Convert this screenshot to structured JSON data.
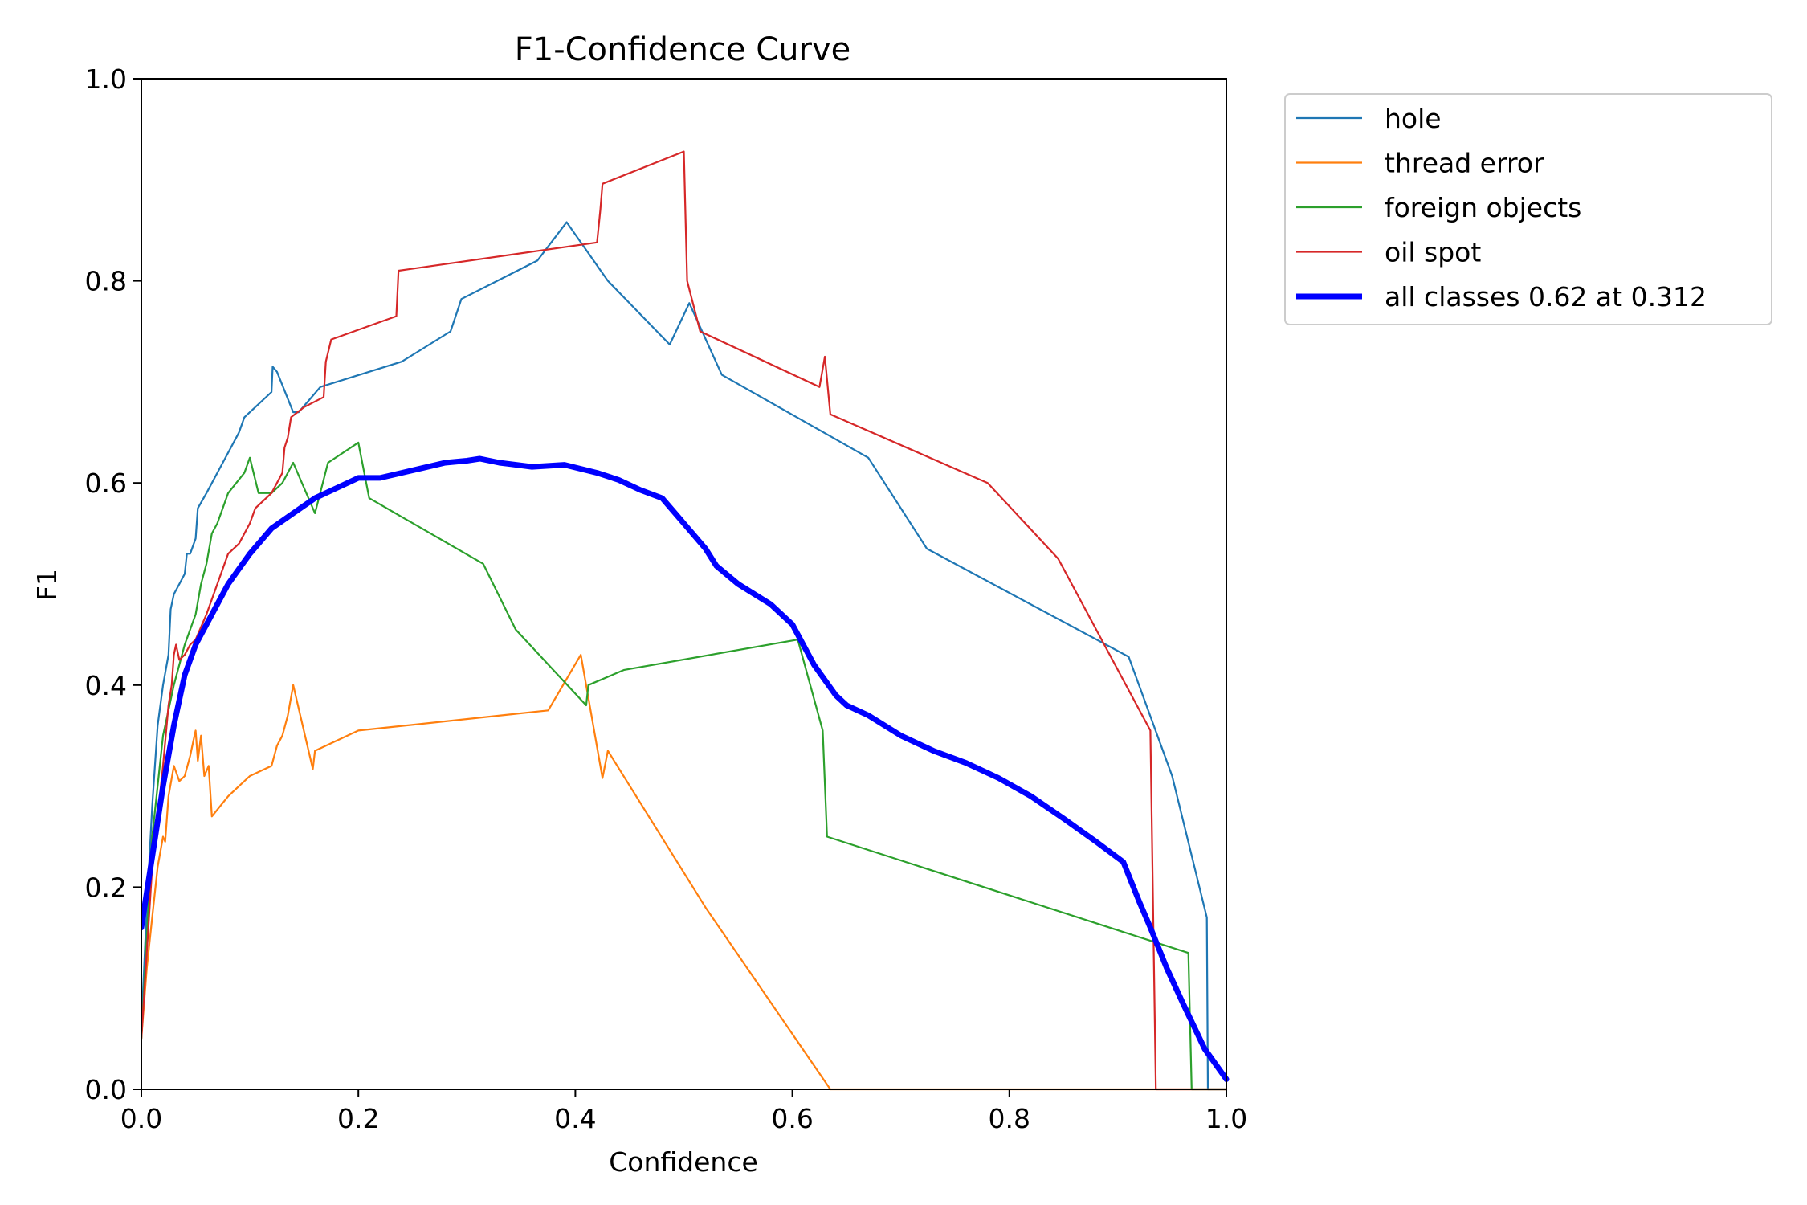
{
  "chart_data": {
    "type": "line",
    "title": "F1-Confidence Curve",
    "xlabel": "Confidence",
    "ylabel": "F1",
    "xlim": [
      0.0,
      1.0
    ],
    "ylim": [
      0.0,
      1.0
    ],
    "grid": false,
    "legend_position": "outside top-right",
    "xticks": [
      0.0,
      0.2,
      0.4,
      0.6,
      0.8,
      1.0
    ],
    "xtick_labels": [
      "0.0",
      "0.2",
      "0.4",
      "0.6",
      "0.8",
      "1.0"
    ],
    "yticks": [
      0.0,
      0.2,
      0.4,
      0.6,
      0.8,
      1.0
    ],
    "ytick_labels": [
      "0.0",
      "0.2",
      "0.4",
      "0.6",
      "0.8",
      "1.0"
    ],
    "series": [
      {
        "name": "hole",
        "color": "#1f77b4",
        "weight": "thin",
        "points": [
          [
            0.0,
            0.06
          ],
          [
            0.005,
            0.18
          ],
          [
            0.01,
            0.28
          ],
          [
            0.015,
            0.36
          ],
          [
            0.02,
            0.4
          ],
          [
            0.025,
            0.43
          ],
          [
            0.027,
            0.475
          ],
          [
            0.03,
            0.49
          ],
          [
            0.035,
            0.5
          ],
          [
            0.04,
            0.51
          ],
          [
            0.042,
            0.53
          ],
          [
            0.045,
            0.53
          ],
          [
            0.05,
            0.545
          ],
          [
            0.052,
            0.575
          ],
          [
            0.06,
            0.59
          ],
          [
            0.07,
            0.61
          ],
          [
            0.08,
            0.63
          ],
          [
            0.09,
            0.65
          ],
          [
            0.095,
            0.665
          ],
          [
            0.1,
            0.67
          ],
          [
            0.12,
            0.69
          ],
          [
            0.121,
            0.715
          ],
          [
            0.125,
            0.71
          ],
          [
            0.14,
            0.67
          ],
          [
            0.145,
            0.67
          ],
          [
            0.165,
            0.695
          ],
          [
            0.24,
            0.72
          ],
          [
            0.285,
            0.75
          ],
          [
            0.295,
            0.782
          ],
          [
            0.365,
            0.82
          ],
          [
            0.392,
            0.858
          ],
          [
            0.43,
            0.8
          ],
          [
            0.487,
            0.737
          ],
          [
            0.505,
            0.778
          ],
          [
            0.535,
            0.707
          ],
          [
            0.67,
            0.625
          ],
          [
            0.724,
            0.535
          ],
          [
            0.91,
            0.428
          ],
          [
            0.95,
            0.31
          ],
          [
            0.982,
            0.17
          ],
          [
            0.983,
            0.0
          ],
          [
            1.0,
            0.0
          ]
        ]
      },
      {
        "name": "thread error",
        "color": "#ff7f0e",
        "weight": "thin",
        "points": [
          [
            0.0,
            0.05
          ],
          [
            0.005,
            0.12
          ],
          [
            0.01,
            0.17
          ],
          [
            0.015,
            0.22
          ],
          [
            0.02,
            0.25
          ],
          [
            0.022,
            0.245
          ],
          [
            0.025,
            0.29
          ],
          [
            0.03,
            0.32
          ],
          [
            0.035,
            0.305
          ],
          [
            0.04,
            0.31
          ],
          [
            0.045,
            0.33
          ],
          [
            0.048,
            0.345
          ],
          [
            0.05,
            0.355
          ],
          [
            0.052,
            0.325
          ],
          [
            0.055,
            0.35
          ],
          [
            0.058,
            0.31
          ],
          [
            0.062,
            0.32
          ],
          [
            0.065,
            0.27
          ],
          [
            0.08,
            0.29
          ],
          [
            0.09,
            0.3
          ],
          [
            0.1,
            0.31
          ],
          [
            0.12,
            0.32
          ],
          [
            0.125,
            0.34
          ],
          [
            0.13,
            0.35
          ],
          [
            0.135,
            0.37
          ],
          [
            0.14,
            0.4
          ],
          [
            0.158,
            0.317
          ],
          [
            0.16,
            0.335
          ],
          [
            0.2,
            0.355
          ],
          [
            0.375,
            0.375
          ],
          [
            0.405,
            0.43
          ],
          [
            0.425,
            0.308
          ],
          [
            0.43,
            0.335
          ],
          [
            0.52,
            0.18
          ],
          [
            0.635,
            0.0
          ],
          [
            1.0,
            0.0
          ]
        ]
      },
      {
        "name": "foreign objects",
        "color": "#2ca02c",
        "weight": "thin",
        "points": [
          [
            0.0,
            0.05
          ],
          [
            0.005,
            0.15
          ],
          [
            0.01,
            0.25
          ],
          [
            0.02,
            0.35
          ],
          [
            0.03,
            0.4
          ],
          [
            0.04,
            0.44
          ],
          [
            0.05,
            0.47
          ],
          [
            0.055,
            0.5
          ],
          [
            0.06,
            0.52
          ],
          [
            0.065,
            0.55
          ],
          [
            0.07,
            0.56
          ],
          [
            0.08,
            0.59
          ],
          [
            0.095,
            0.61
          ],
          [
            0.1,
            0.625
          ],
          [
            0.108,
            0.59
          ],
          [
            0.12,
            0.59
          ],
          [
            0.13,
            0.6
          ],
          [
            0.14,
            0.62
          ],
          [
            0.16,
            0.57
          ],
          [
            0.172,
            0.62
          ],
          [
            0.2,
            0.64
          ],
          [
            0.21,
            0.585
          ],
          [
            0.315,
            0.52
          ],
          [
            0.345,
            0.455
          ],
          [
            0.41,
            0.38
          ],
          [
            0.412,
            0.4
          ],
          [
            0.445,
            0.415
          ],
          [
            0.605,
            0.445
          ],
          [
            0.628,
            0.355
          ],
          [
            0.632,
            0.25
          ],
          [
            0.965,
            0.135
          ],
          [
            0.968,
            0.0
          ],
          [
            1.0,
            0.0
          ]
        ]
      },
      {
        "name": "oil spot",
        "color": "#d62728",
        "weight": "thin",
        "points": [
          [
            0.0,
            0.05
          ],
          [
            0.01,
            0.22
          ],
          [
            0.02,
            0.32
          ],
          [
            0.025,
            0.38
          ],
          [
            0.028,
            0.4
          ],
          [
            0.03,
            0.43
          ],
          [
            0.032,
            0.44
          ],
          [
            0.035,
            0.425
          ],
          [
            0.04,
            0.43
          ],
          [
            0.045,
            0.44
          ],
          [
            0.05,
            0.445
          ],
          [
            0.06,
            0.47
          ],
          [
            0.07,
            0.5
          ],
          [
            0.08,
            0.53
          ],
          [
            0.09,
            0.54
          ],
          [
            0.1,
            0.56
          ],
          [
            0.105,
            0.575
          ],
          [
            0.11,
            0.58
          ],
          [
            0.12,
            0.59
          ],
          [
            0.13,
            0.61
          ],
          [
            0.132,
            0.635
          ],
          [
            0.135,
            0.645
          ],
          [
            0.138,
            0.665
          ],
          [
            0.15,
            0.675
          ],
          [
            0.168,
            0.685
          ],
          [
            0.17,
            0.72
          ],
          [
            0.175,
            0.742
          ],
          [
            0.235,
            0.765
          ],
          [
            0.237,
            0.81
          ],
          [
            0.42,
            0.838
          ],
          [
            0.423,
            0.87
          ],
          [
            0.425,
            0.896
          ],
          [
            0.5,
            0.928
          ],
          [
            0.503,
            0.8
          ],
          [
            0.515,
            0.75
          ],
          [
            0.625,
            0.695
          ],
          [
            0.63,
            0.725
          ],
          [
            0.635,
            0.668
          ],
          [
            0.78,
            0.6
          ],
          [
            0.845,
            0.525
          ],
          [
            0.93,
            0.355
          ],
          [
            0.935,
            0.0
          ],
          [
            1.0,
            0.0
          ]
        ]
      },
      {
        "name": "all classes 0.62 at 0.312",
        "color": "#0000ff",
        "weight": "thick",
        "points": [
          [
            0.0,
            0.16
          ],
          [
            0.01,
            0.23
          ],
          [
            0.02,
            0.3
          ],
          [
            0.03,
            0.36
          ],
          [
            0.04,
            0.41
          ],
          [
            0.05,
            0.44
          ],
          [
            0.06,
            0.46
          ],
          [
            0.07,
            0.48
          ],
          [
            0.08,
            0.5
          ],
          [
            0.09,
            0.515
          ],
          [
            0.1,
            0.53
          ],
          [
            0.12,
            0.555
          ],
          [
            0.14,
            0.57
          ],
          [
            0.16,
            0.585
          ],
          [
            0.18,
            0.595
          ],
          [
            0.2,
            0.605
          ],
          [
            0.22,
            0.605
          ],
          [
            0.24,
            0.61
          ],
          [
            0.26,
            0.615
          ],
          [
            0.28,
            0.62
          ],
          [
            0.3,
            0.622
          ],
          [
            0.312,
            0.624
          ],
          [
            0.33,
            0.62
          ],
          [
            0.36,
            0.616
          ],
          [
            0.39,
            0.618
          ],
          [
            0.42,
            0.61
          ],
          [
            0.44,
            0.603
          ],
          [
            0.46,
            0.593
          ],
          [
            0.48,
            0.585
          ],
          [
            0.5,
            0.56
          ],
          [
            0.52,
            0.535
          ],
          [
            0.53,
            0.518
          ],
          [
            0.55,
            0.5
          ],
          [
            0.58,
            0.48
          ],
          [
            0.6,
            0.46
          ],
          [
            0.62,
            0.42
          ],
          [
            0.64,
            0.39
          ],
          [
            0.65,
            0.38
          ],
          [
            0.67,
            0.37
          ],
          [
            0.7,
            0.35
          ],
          [
            0.73,
            0.335
          ],
          [
            0.76,
            0.323
          ],
          [
            0.79,
            0.308
          ],
          [
            0.82,
            0.29
          ],
          [
            0.85,
            0.268
          ],
          [
            0.88,
            0.245
          ],
          [
            0.905,
            0.225
          ],
          [
            0.92,
            0.185
          ],
          [
            0.93,
            0.16
          ],
          [
            0.945,
            0.12
          ],
          [
            0.96,
            0.085
          ],
          [
            0.98,
            0.04
          ],
          [
            1.0,
            0.01
          ]
        ]
      }
    ]
  }
}
